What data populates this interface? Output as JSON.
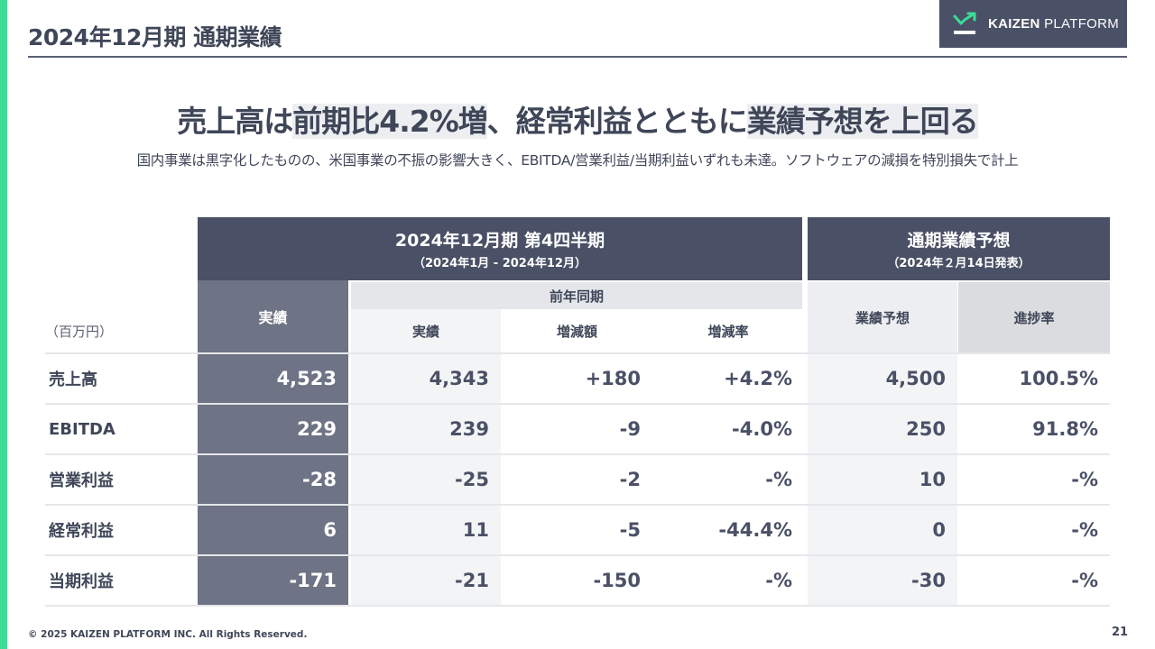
{
  "page": {
    "title": "2024年12月期 通期業績",
    "headline_pre": "売上高は",
    "headline_hl1": "前期比4.2%増",
    "headline_mid": "、経常利益とともに",
    "headline_hl2": "業績予想を上回る",
    "subheadline": "国内事業は黒字化したものの、米国事業の不振の影響大きく、EBITDA/営業利益/当期利益いずれも未達。ソフトウェアの減損を特別損失で計上",
    "footer": "© 2025 KAIZEN PLATFORM INC. All Rights Reserved.",
    "page_number": "21"
  },
  "logo": {
    "word1": "KAIZEN",
    "word2": "PLATFORM",
    "icon": "trend-up-arrow-icon",
    "bg_color": "#4a5066",
    "accent_color": "#3ddc97"
  },
  "table": {
    "unit": "（百万円）",
    "group_q4_title": "2024年12月期 第4四半期",
    "group_q4_period": "（2024年1月 - 2024年12月）",
    "group_fc_title": "通期業績予想",
    "group_fc_date": "（2024年２月14日発表）",
    "col_actual": "実績",
    "prev_group": "前年同期",
    "col_prev_actual": "実績",
    "col_change": "増減額",
    "col_change_rate": "増減率",
    "col_forecast": "業績予想",
    "col_progress": "進捗率",
    "rows": [
      {
        "label": "売上高",
        "actual": "4,523",
        "prev": "4,343",
        "change": "+180",
        "rate": "+4.2%",
        "forecast": "4,500",
        "progress": "100.5%"
      },
      {
        "label": "EBITDA",
        "actual": "229",
        "prev": "239",
        "change": "-9",
        "rate": "-4.0%",
        "forecast": "250",
        "progress": "91.8%"
      },
      {
        "label": "営業利益",
        "actual": "-28",
        "prev": "-25",
        "change": "-2",
        "rate": "-%",
        "forecast": "10",
        "progress": "-%"
      },
      {
        "label": "経常利益",
        "actual": "6",
        "prev": "11",
        "change": "-5",
        "rate": "-44.4%",
        "forecast": "0",
        "progress": "-%"
      },
      {
        "label": "当期利益",
        "actual": "-171",
        "prev": "-21",
        "change": "-150",
        "rate": "-%",
        "forecast": "-30",
        "progress": "-%"
      }
    ]
  }
}
